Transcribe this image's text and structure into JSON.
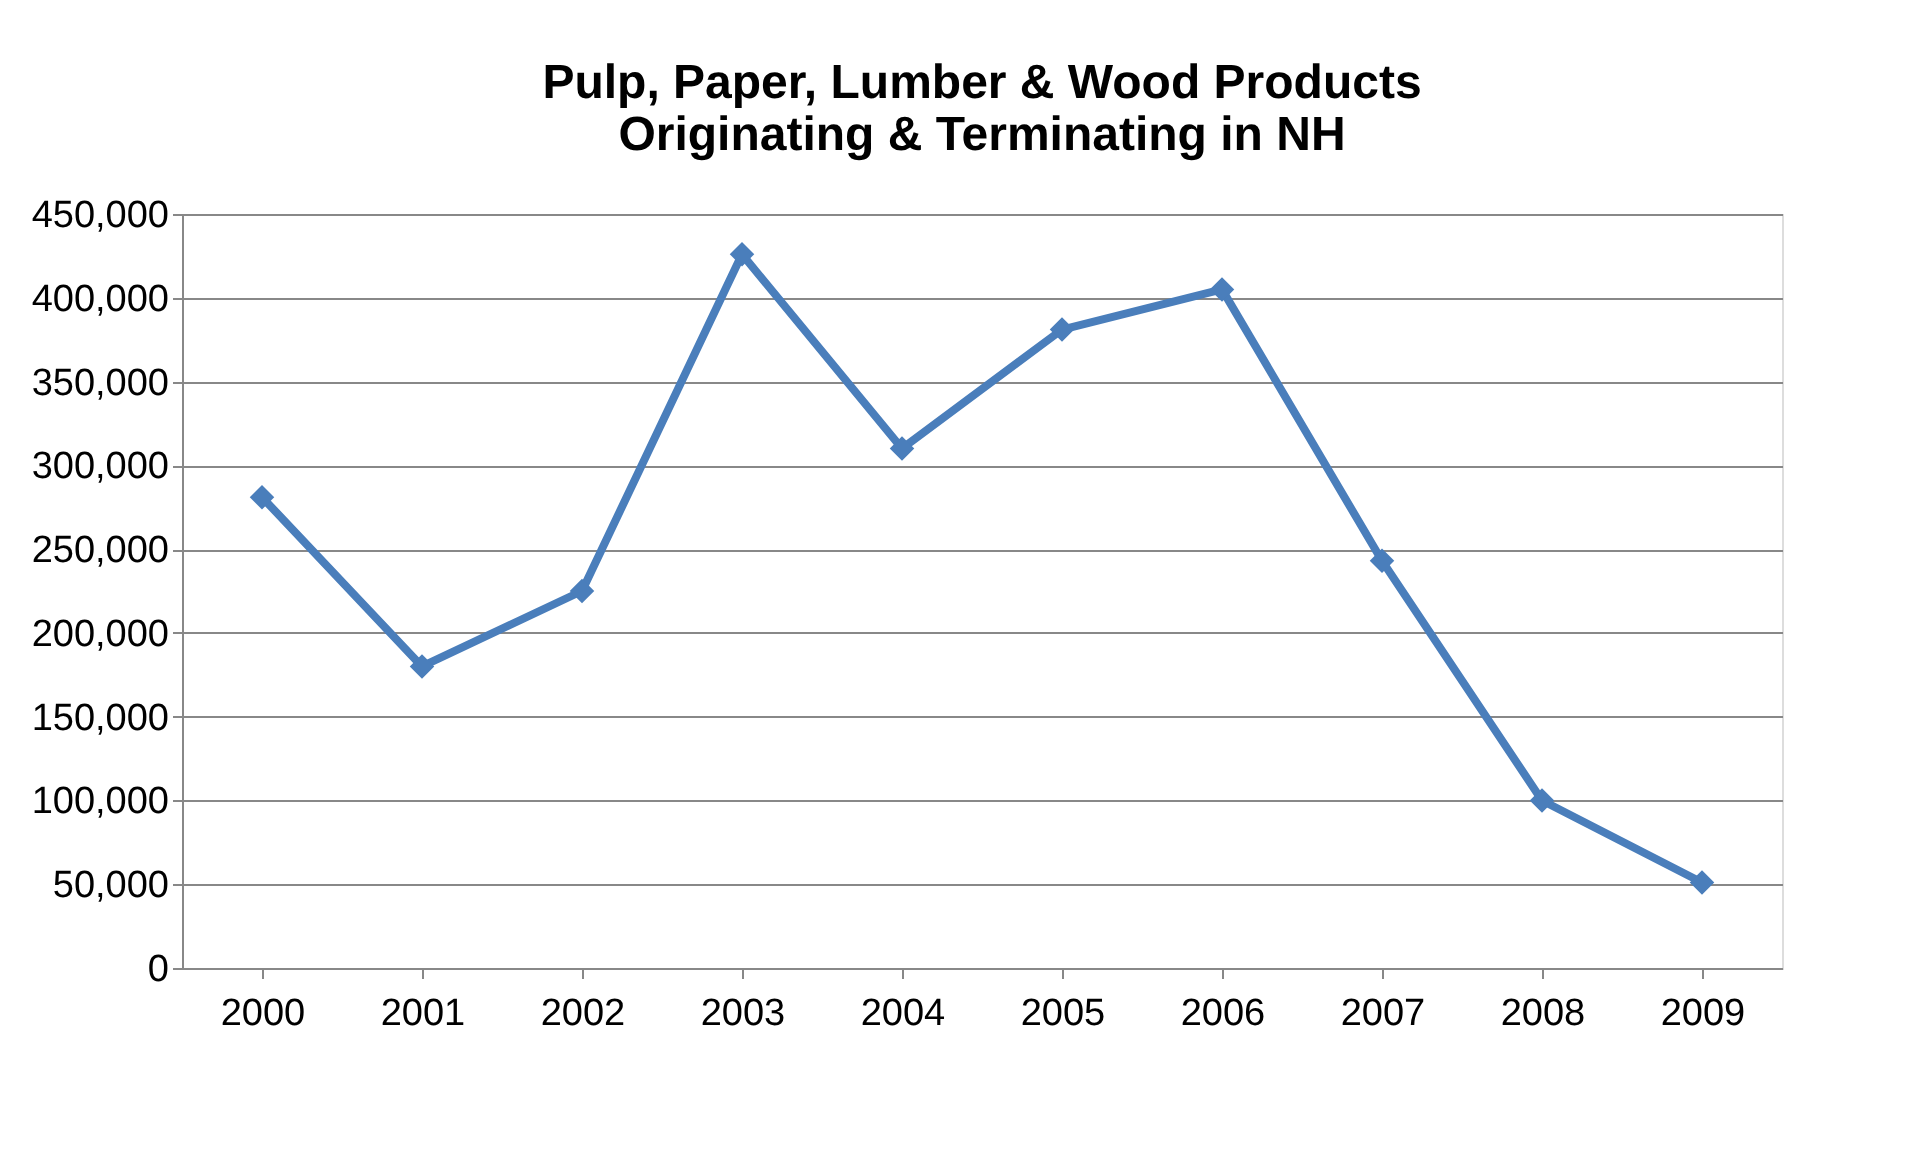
{
  "chart_data": {
    "type": "line",
    "title": "Pulp, Paper, Lumber & Wood Products\nOriginating & Terminating in NH",
    "categories": [
      "2000",
      "2001",
      "2002",
      "2003",
      "2004",
      "2005",
      "2006",
      "2007",
      "2008",
      "2009"
    ],
    "series": [
      {
        "color": "#4a7ebb",
        "values": [
          281000,
          180000,
          225000,
          426000,
          310000,
          381000,
          405000,
          243000,
          100000,
          51000
        ]
      }
    ],
    "ylim": [
      0,
      450000
    ],
    "yticks": [
      0,
      {
        "value": 50000,
        "label": "50,000"
      },
      {
        "value": 100000,
        "label": "100,000"
      },
      {
        "value": 150000,
        "label": "150,000"
      },
      {
        "value": 200000,
        "label": "200,000"
      },
      {
        "value": 250000,
        "label": "250,000"
      },
      {
        "value": 300000,
        "label": "300,000"
      },
      {
        "value": 350000,
        "label": "350,000"
      },
      {
        "value": 400000,
        "label": "400,000"
      },
      {
        "value": 450000,
        "label": "450,000"
      }
    ],
    "grid": "y",
    "legend": false,
    "marker": "diamond",
    "line_style": "solid"
  }
}
